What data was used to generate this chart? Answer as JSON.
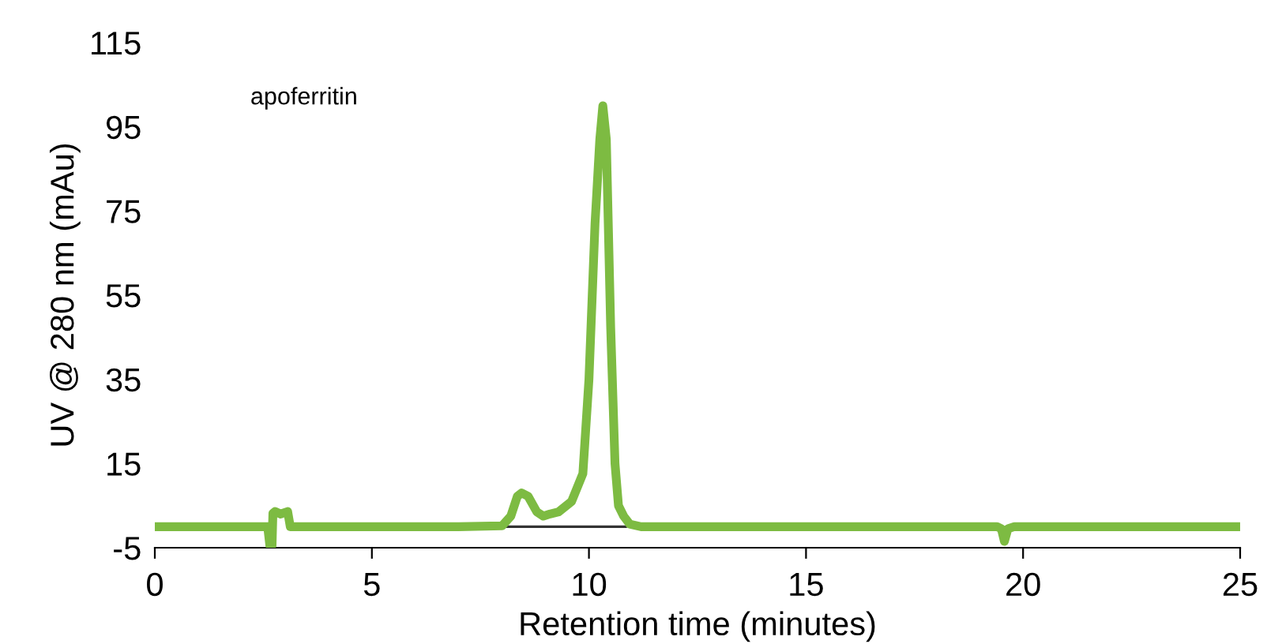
{
  "chart_data": {
    "type": "line",
    "xlabel": "Retention time (minutes)",
    "ylabel": "UV @ 280 nm (mAu)",
    "annotations": [
      "apoferritin"
    ],
    "xlim": [
      0,
      25
    ],
    "xticks": [
      0,
      5,
      10,
      15,
      20,
      25
    ],
    "ylim": [
      -5,
      115
    ],
    "yticks": [
      -5,
      15,
      35,
      55,
      75,
      95,
      115
    ],
    "grid": false,
    "marker": "none",
    "line_style": "solid",
    "series": [
      {
        "color": "#7dbb42",
        "x": [
          0,
          1,
          2,
          2.6,
          2.65,
          2.7,
          2.72,
          2.77,
          2.9,
          3.06,
          3.12,
          3.5,
          5,
          7,
          8.0,
          8.2,
          8.35,
          8.45,
          8.6,
          8.8,
          8.95,
          9.1,
          9.3,
          9.6,
          9.86,
          10.0,
          10.14,
          10.25,
          10.32,
          10.4,
          10.5,
          10.6,
          10.68,
          10.8,
          10.94,
          11.2,
          12,
          15,
          19.4,
          19.5,
          19.57,
          19.65,
          19.8,
          22,
          25
        ],
        "values": [
          0,
          0,
          0,
          0,
          -4.5,
          -4.5,
          3.2,
          3.6,
          3,
          3.6,
          0,
          0,
          0,
          0,
          0.2,
          2.5,
          7.2,
          8.0,
          7.2,
          3.5,
          2.5,
          3.0,
          3.5,
          6,
          12.6,
          35,
          72,
          92,
          100,
          92,
          47.5,
          15,
          5,
          2.5,
          0.6,
          0,
          0,
          0,
          0,
          -0.5,
          -3.5,
          -0.5,
          0,
          0,
          0
        ]
      },
      {
        "color": "#333333",
        "x": [
          8.1,
          10.86
        ],
        "values": [
          0,
          0
        ]
      }
    ]
  }
}
